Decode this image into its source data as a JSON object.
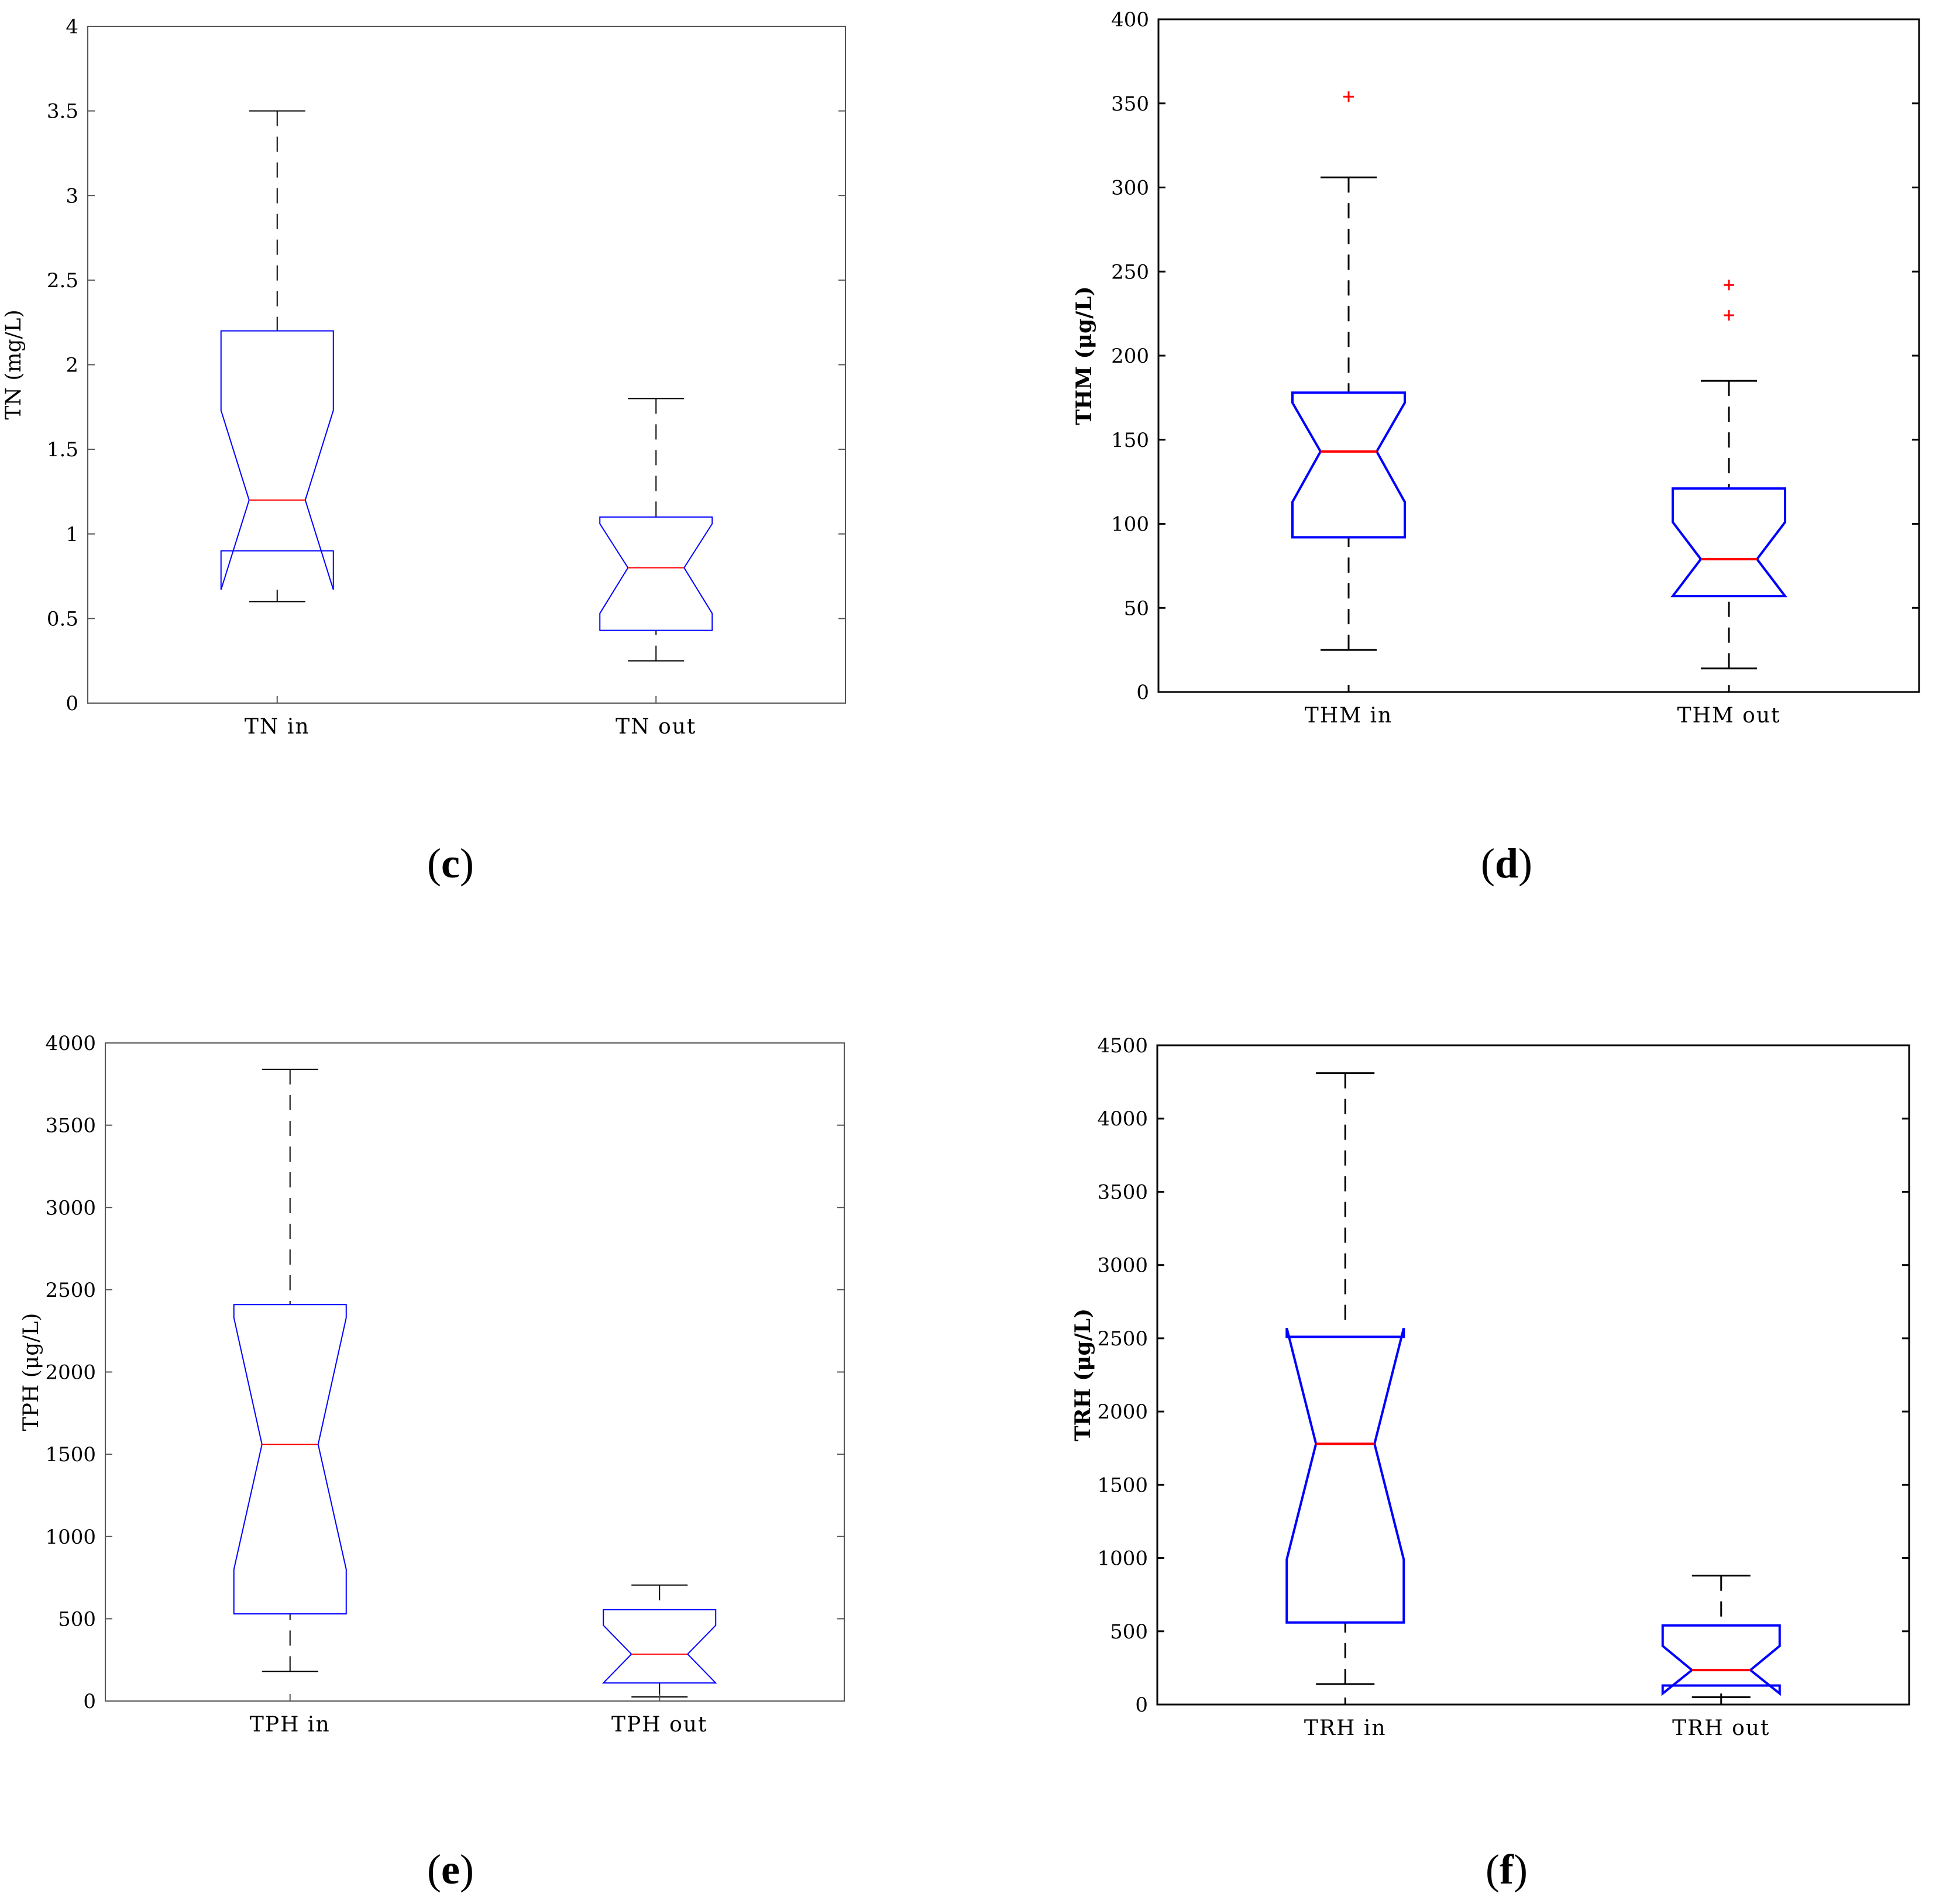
{
  "chart_data": [
    {
      "type": "box",
      "panel": "c",
      "ylabel": "TN (mg/L)",
      "ylim": [
        0,
        4
      ],
      "yticks": [
        0,
        0.5,
        1,
        1.5,
        2,
        2.5,
        3,
        3.5,
        4
      ],
      "ytick_labels": [
        "0",
        "0.5",
        "1",
        "1.5",
        "2",
        "2.5",
        "3",
        "3.5",
        "4"
      ],
      "categories": [
        "TN in",
        "TN out"
      ],
      "boxes": [
        {
          "min": 0.6,
          "q1": 0.9,
          "median": 1.2,
          "q3": 2.2,
          "max": 3.5,
          "notch_low": 0.67,
          "notch_high": 1.73,
          "outliers": []
        },
        {
          "min": 0.25,
          "q1": 0.43,
          "median": 0.8,
          "q3": 1.1,
          "max": 1.8,
          "notch_low": 0.53,
          "notch_high": 1.06,
          "outliers": []
        }
      ],
      "colors": {
        "box": "#0000ff",
        "median": "#ff0000",
        "whisker": "#000000",
        "outlier": "#ff0000",
        "axis": "#555555"
      }
    },
    {
      "type": "box",
      "panel": "d",
      "ylabel": "THM (μg/L)",
      "ylim": [
        0,
        400
      ],
      "yticks": [
        0,
        50,
        100,
        150,
        200,
        250,
        300,
        350,
        400
      ],
      "ytick_labels": [
        "0",
        "50",
        "100",
        "150",
        "200",
        "250",
        "300",
        "350",
        "400"
      ],
      "categories": [
        "THM in",
        "THM out"
      ],
      "boxes": [
        {
          "min": 25,
          "q1": 92,
          "median": 143,
          "q3": 178,
          "max": 306,
          "notch_low": 113,
          "notch_high": 172,
          "outliers": [
            354
          ]
        },
        {
          "min": 14,
          "q1": 57,
          "median": 79,
          "q3": 121,
          "max": 185,
          "notch_low": 57,
          "notch_high": 101,
          "outliers": [
            224,
            242
          ]
        }
      ],
      "colors": {
        "box": "#0000ff",
        "median": "#ff0000",
        "whisker": "#000000",
        "outlier": "#ff0000",
        "axis": "#000000"
      }
    },
    {
      "type": "box",
      "panel": "e",
      "ylabel": "TPH (μg/L)",
      "ylim": [
        0,
        4000
      ],
      "yticks": [
        0,
        500,
        1000,
        1500,
        2000,
        2500,
        3000,
        3500,
        4000
      ],
      "ytick_labels": [
        "0",
        "500",
        "1000",
        "1500",
        "2000",
        "2500",
        "3000",
        "3500",
        "4000"
      ],
      "categories": [
        "TPH in",
        "TPH out"
      ],
      "boxes": [
        {
          "min": 180,
          "q1": 530,
          "median": 1560,
          "q3": 2410,
          "max": 3840,
          "notch_low": 800,
          "notch_high": 2330,
          "outliers": []
        },
        {
          "min": 25,
          "q1": 110,
          "median": 285,
          "q3": 555,
          "max": 705,
          "notch_low": 110,
          "notch_high": 460,
          "outliers": []
        }
      ],
      "colors": {
        "box": "#0000ff",
        "median": "#ff0000",
        "whisker": "#000000",
        "outlier": "#ff0000",
        "axis": "#555555"
      }
    },
    {
      "type": "box",
      "panel": "f",
      "ylabel": "TRH (μg/L)",
      "ylim": [
        0,
        4500
      ],
      "yticks": [
        0,
        500,
        1000,
        1500,
        2000,
        2500,
        3000,
        3500,
        4000,
        4500
      ],
      "ytick_labels": [
        "0",
        "500",
        "1000",
        "1500",
        "2000",
        "2500",
        "3000",
        "3500",
        "4000",
        "4500"
      ],
      "categories": [
        "TRH in",
        "TRH out"
      ],
      "boxes": [
        {
          "min": 140,
          "q1": 560,
          "median": 1780,
          "q3": 2510,
          "max": 4310,
          "notch_low": 990,
          "notch_high": 2570,
          "outliers": []
        },
        {
          "min": 50,
          "q1": 130,
          "median": 235,
          "q3": 540,
          "max": 880,
          "notch_low": 75,
          "notch_high": 400,
          "outliers": []
        }
      ],
      "colors": {
        "box": "#0000ff",
        "median": "#ff0000",
        "whisker": "#000000",
        "outlier": "#ff0000",
        "axis": "#000000"
      }
    }
  ]
}
